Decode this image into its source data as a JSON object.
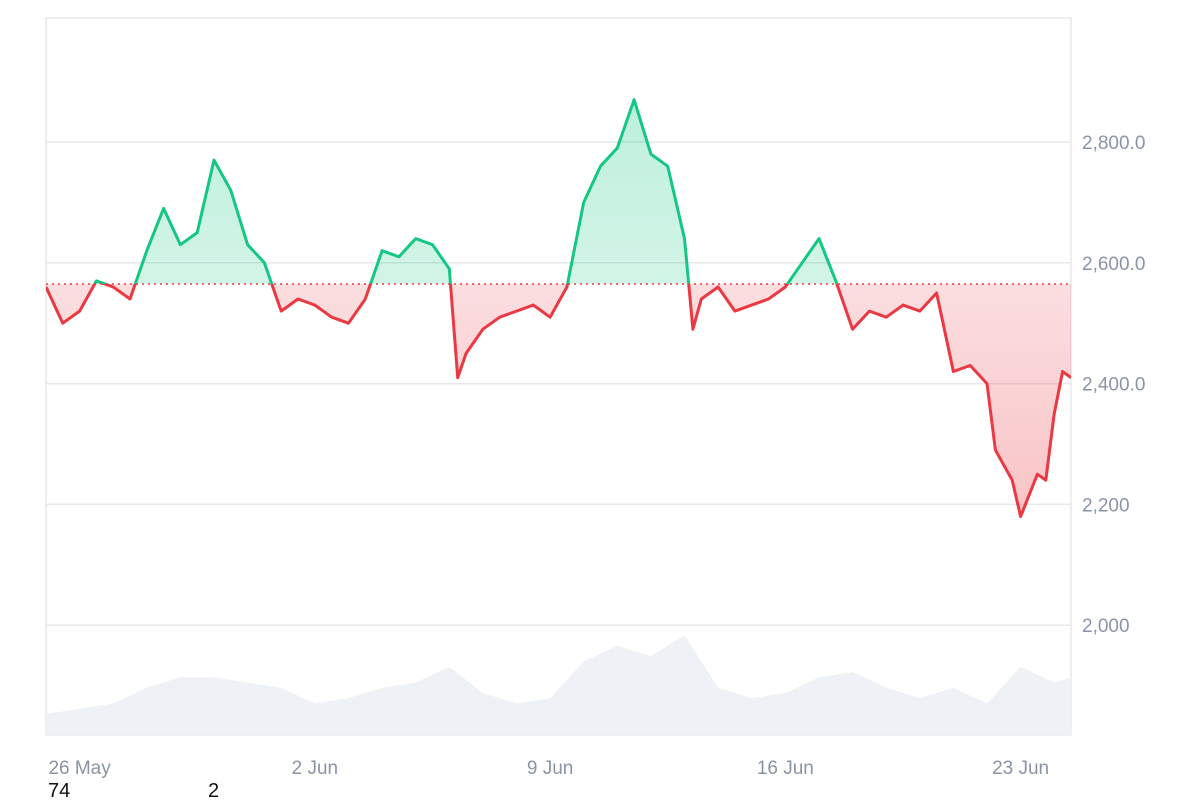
{
  "chart_data": {
    "type": "area",
    "title": "",
    "xlabel": "",
    "ylabel": "",
    "baseline": 2565,
    "ylim": [
      1820,
      3000
    ],
    "y_ticks": [
      {
        "value": 2000,
        "label": "2,000"
      },
      {
        "value": 2200,
        "label": "2,200"
      },
      {
        "value": 2400,
        "label": "2,400.0"
      },
      {
        "value": 2600,
        "label": "2,600.0"
      },
      {
        "value": 2800,
        "label": "2,800.0"
      }
    ],
    "x_range": [
      "2025-05-25",
      "2025-06-24"
    ],
    "x_ticks": [
      {
        "date": "2025-05-26",
        "label": "26 May"
      },
      {
        "date": "2025-06-02",
        "label": "2 Jun"
      },
      {
        "date": "2025-06-09",
        "label": "9 Jun"
      },
      {
        "date": "2025-06-16",
        "label": "16 Jun"
      },
      {
        "date": "2025-06-23",
        "label": "23 Jun"
      }
    ],
    "price": [
      [
        "2025-05-25 00:00",
        2560
      ],
      [
        "2025-05-25 12:00",
        2500
      ],
      [
        "2025-05-26 00:00",
        2520
      ],
      [
        "2025-05-26 12:00",
        2570
      ],
      [
        "2025-05-27 00:00",
        2560
      ],
      [
        "2025-05-27 12:00",
        2540
      ],
      [
        "2025-05-28 00:00",
        2620
      ],
      [
        "2025-05-28 12:00",
        2690
      ],
      [
        "2025-05-29 00:00",
        2630
      ],
      [
        "2025-05-29 12:00",
        2650
      ],
      [
        "2025-05-30 00:00",
        2770
      ],
      [
        "2025-05-30 12:00",
        2720
      ],
      [
        "2025-05-31 00:00",
        2630
      ],
      [
        "2025-05-31 12:00",
        2600
      ],
      [
        "2025-06-01 00:00",
        2520
      ],
      [
        "2025-06-01 12:00",
        2540
      ],
      [
        "2025-06-02 00:00",
        2530
      ],
      [
        "2025-06-02 12:00",
        2510
      ],
      [
        "2025-06-03 00:00",
        2500
      ],
      [
        "2025-06-03 12:00",
        2540
      ],
      [
        "2025-06-04 00:00",
        2620
      ],
      [
        "2025-06-04 12:00",
        2610
      ],
      [
        "2025-06-05 00:00",
        2640
      ],
      [
        "2025-06-05 12:00",
        2630
      ],
      [
        "2025-06-06 00:00",
        2590
      ],
      [
        "2025-06-06 06:00",
        2410
      ],
      [
        "2025-06-06 12:00",
        2450
      ],
      [
        "2025-06-07 00:00",
        2490
      ],
      [
        "2025-06-07 12:00",
        2510
      ],
      [
        "2025-06-08 00:00",
        2520
      ],
      [
        "2025-06-08 12:00",
        2530
      ],
      [
        "2025-06-09 00:00",
        2510
      ],
      [
        "2025-06-09 12:00",
        2560
      ],
      [
        "2025-06-10 00:00",
        2700
      ],
      [
        "2025-06-10 12:00",
        2760
      ],
      [
        "2025-06-11 00:00",
        2790
      ],
      [
        "2025-06-11 12:00",
        2870
      ],
      [
        "2025-06-12 00:00",
        2780
      ],
      [
        "2025-06-12 12:00",
        2760
      ],
      [
        "2025-06-13 00:00",
        2640
      ],
      [
        "2025-06-13 06:00",
        2490
      ],
      [
        "2025-06-13 12:00",
        2540
      ],
      [
        "2025-06-14 00:00",
        2560
      ],
      [
        "2025-06-14 12:00",
        2520
      ],
      [
        "2025-06-15 00:00",
        2530
      ],
      [
        "2025-06-15 12:00",
        2540
      ],
      [
        "2025-06-16 00:00",
        2560
      ],
      [
        "2025-06-16 12:00",
        2600
      ],
      [
        "2025-06-17 00:00",
        2640
      ],
      [
        "2025-06-17 12:00",
        2570
      ],
      [
        "2025-06-18 00:00",
        2490
      ],
      [
        "2025-06-18 12:00",
        2520
      ],
      [
        "2025-06-19 00:00",
        2510
      ],
      [
        "2025-06-19 12:00",
        2530
      ],
      [
        "2025-06-20 00:00",
        2520
      ],
      [
        "2025-06-20 12:00",
        2550
      ],
      [
        "2025-06-21 00:00",
        2420
      ],
      [
        "2025-06-21 12:00",
        2430
      ],
      [
        "2025-06-22 00:00",
        2400
      ],
      [
        "2025-06-22 06:00",
        2290
      ],
      [
        "2025-06-22 18:00",
        2240
      ],
      [
        "2025-06-23 00:00",
        2180
      ],
      [
        "2025-06-23 12:00",
        2250
      ],
      [
        "2025-06-23 18:00",
        2240
      ],
      [
        "2025-06-24 00:00",
        2350
      ],
      [
        "2025-06-24 06:00",
        2420
      ],
      [
        "2025-06-24 12:00",
        2410
      ]
    ],
    "volume": [
      [
        "2025-05-25 00:00",
        0.2
      ],
      [
        "2025-05-26 00:00",
        0.25
      ],
      [
        "2025-05-27 00:00",
        0.3
      ],
      [
        "2025-05-28 00:00",
        0.45
      ],
      [
        "2025-05-29 00:00",
        0.55
      ],
      [
        "2025-05-30 00:00",
        0.55
      ],
      [
        "2025-05-31 00:00",
        0.5
      ],
      [
        "2025-06-01 00:00",
        0.45
      ],
      [
        "2025-06-02 00:00",
        0.3
      ],
      [
        "2025-06-03 00:00",
        0.35
      ],
      [
        "2025-06-04 00:00",
        0.45
      ],
      [
        "2025-06-05 00:00",
        0.5
      ],
      [
        "2025-06-06 00:00",
        0.65
      ],
      [
        "2025-06-07 00:00",
        0.4
      ],
      [
        "2025-06-08 00:00",
        0.3
      ],
      [
        "2025-06-09 00:00",
        0.35
      ],
      [
        "2025-06-10 00:00",
        0.7
      ],
      [
        "2025-06-11 00:00",
        0.85
      ],
      [
        "2025-06-12 00:00",
        0.75
      ],
      [
        "2025-06-13 00:00",
        0.95
      ],
      [
        "2025-06-14 00:00",
        0.45
      ],
      [
        "2025-06-15 00:00",
        0.35
      ],
      [
        "2025-06-16 00:00",
        0.4
      ],
      [
        "2025-06-17 00:00",
        0.55
      ],
      [
        "2025-06-18 00:00",
        0.6
      ],
      [
        "2025-06-19 00:00",
        0.45
      ],
      [
        "2025-06-20 00:00",
        0.35
      ],
      [
        "2025-06-21 00:00",
        0.45
      ],
      [
        "2025-06-22 00:00",
        0.3
      ],
      [
        "2025-06-23 00:00",
        0.65
      ],
      [
        "2025-06-24 00:00",
        0.5
      ],
      [
        "2025-06-24 12:00",
        0.55
      ]
    ],
    "grid": true,
    "legend": "none",
    "colors": {
      "up_line": "#16c784",
      "up_fill": "#16c784",
      "down_line": "#ea3943",
      "down_fill": "#ea3943",
      "baseline": "#ea3943",
      "grid": "#e6e8ec",
      "volume": "#eef1f5",
      "tick_text": "#8a94a6"
    }
  },
  "footer": {
    "left_number": "74",
    "right_number": "2"
  }
}
